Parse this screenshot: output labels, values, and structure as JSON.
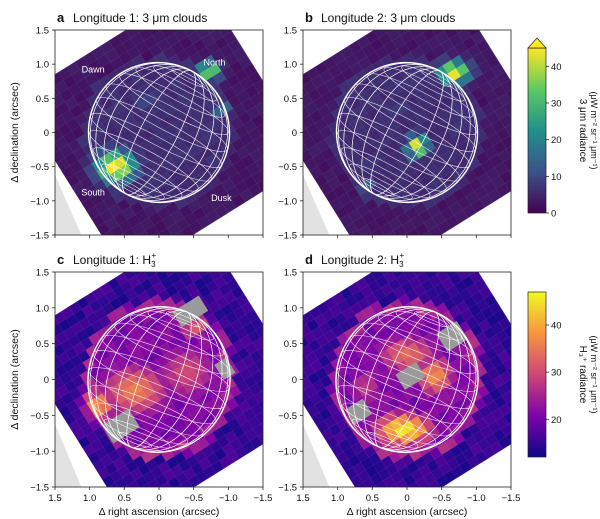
{
  "colors": {
    "bg_clouds": "#3d1454",
    "bg_h3": "#1a0f8c",
    "overlay_grey": "#9a9a9a",
    "obs_grey": "#e2e2e2",
    "viridis": [
      "#440154",
      "#3b528b",
      "#21918c",
      "#5ec962",
      "#fde725"
    ],
    "plasma": [
      "#0d0887",
      "#7e03a8",
      "#cc4778",
      "#f89540",
      "#f0f921"
    ]
  },
  "chart_data": [
    {
      "type": "heatmap",
      "panel": "a",
      "title": "Longitude 1: 3 μm clouds",
      "xlabel": "",
      "ylabel": "Δ declination (arcsec)",
      "xlim": [
        1.5,
        -1.5
      ],
      "ylim": [
        -1.5,
        1.5
      ],
      "xticks": [
        "1.5",
        "1.0",
        "0.5",
        "0",
        "−0.5",
        "−1.0",
        "−1.5"
      ],
      "yticks": [
        "1.5",
        "1.0",
        "0.5",
        "0",
        "−0.5",
        "−1.0",
        "−1.5"
      ],
      "disk_center": [
        0.0,
        0.0
      ],
      "disk_radius": 1.02,
      "annotations": [
        {
          "text": "Dawn",
          "x": 0.95,
          "y": 0.88
        },
        {
          "text": "North",
          "x": -0.8,
          "y": 0.98
        },
        {
          "text": "South",
          "x": 0.95,
          "y": -0.92
        },
        {
          "text": "Dusk",
          "x": -0.9,
          "y": -1.0
        }
      ],
      "features": [
        {
          "x": 0.62,
          "y": -0.5,
          "sx": 0.28,
          "sy": 0.22,
          "value": 48
        },
        {
          "x": -0.72,
          "y": 0.9,
          "sx": 0.16,
          "sy": 0.13,
          "value": 40
        },
        {
          "x": -0.9,
          "y": 0.35,
          "sx": 0.12,
          "sy": 0.12,
          "value": 20
        },
        {
          "x": 0.2,
          "y": 0.45,
          "sx": 0.25,
          "sy": 0.2,
          "value": 10
        },
        {
          "x": -0.3,
          "y": -0.3,
          "sx": 0.3,
          "sy": 0.3,
          "value": 7
        }
      ]
    },
    {
      "type": "heatmap",
      "panel": "b",
      "title": "Longitude 2: 3 μm clouds",
      "xlabel": "",
      "ylabel": "",
      "xlim": [
        1.5,
        -1.5
      ],
      "ylim": [
        -1.5,
        1.5
      ],
      "xticks": [
        "1.5",
        "1.0",
        "0.5",
        "0",
        "−0.5",
        "−1.0",
        "−1.5"
      ],
      "yticks": [
        "1.5",
        "1.0",
        "0.5",
        "0",
        "−0.5",
        "−1.0",
        "−1.5"
      ],
      "disk_center": [
        0.0,
        0.0
      ],
      "disk_radius": 1.02,
      "colorbar": {
        "label": "3 μm radiance",
        "units": "(μW m⁻² sr⁻¹ μm⁻¹)",
        "ticks": [
          "0",
          "10",
          "20",
          "30",
          "40"
        ],
        "range": [
          0,
          45
        ],
        "extend": "max"
      },
      "features": [
        {
          "x": -0.68,
          "y": 0.88,
          "sx": 0.22,
          "sy": 0.16,
          "value": 46
        },
        {
          "x": -0.15,
          "y": -0.2,
          "sx": 0.15,
          "sy": 0.16,
          "value": 45
        },
        {
          "x": 0.58,
          "y": -0.78,
          "sx": 0.14,
          "sy": 0.1,
          "value": 14
        },
        {
          "x": 0.1,
          "y": 0.35,
          "sx": 0.3,
          "sy": 0.22,
          "value": 8
        }
      ]
    },
    {
      "type": "heatmap",
      "panel": "c",
      "title": "Longitude 1: H",
      "title_sub": "3",
      "title_sup": "+",
      "xlabel": "Δ right ascension (arcsec)",
      "ylabel": "Δ declination (arcsec)",
      "xlim": [
        1.5,
        -1.5
      ],
      "ylim": [
        -1.5,
        1.5
      ],
      "xticks": [
        "1.5",
        "1.0",
        "0.5",
        "0",
        "−0.5",
        "−1.0",
        "−1.5"
      ],
      "yticks": [
        "1.5",
        "1.0",
        "0.5",
        "0",
        "−0.5",
        "−1.0",
        "−1.5"
      ],
      "disk_center": [
        0.0,
        0.0
      ],
      "disk_radius": 1.02,
      "features": [
        {
          "x": 0.35,
          "y": -0.15,
          "sx": 0.55,
          "sy": 0.4,
          "value": 36
        },
        {
          "x": -0.4,
          "y": 0.1,
          "sx": 0.5,
          "sy": 0.45,
          "value": 30
        },
        {
          "x": 0.85,
          "y": -0.35,
          "sx": 0.25,
          "sy": 0.25,
          "value": 37
        },
        {
          "x": -0.5,
          "y": 0.72,
          "sx": 0.25,
          "sy": 0.2,
          "value": 32
        }
      ]
    },
    {
      "type": "heatmap",
      "panel": "d",
      "title": "Longitude 2: H",
      "title_sub": "3",
      "title_sup": "+",
      "xlabel": "Δ right ascension (arcsec)",
      "ylabel": "",
      "xlim": [
        1.5,
        -1.5
      ],
      "ylim": [
        -1.5,
        1.5
      ],
      "xticks": [
        "1.5",
        "1.0",
        "0.5",
        "0",
        "−0.5",
        "−1.0",
        "−1.5"
      ],
      "yticks": [
        "1.5",
        "1.0",
        "0.5",
        "0",
        "−0.5",
        "−1.0",
        "−1.5"
      ],
      "disk_center": [
        0.0,
        0.0
      ],
      "disk_radius": 1.02,
      "colorbar": {
        "label": "H₃⁺ radiance",
        "units": "(μW m⁻² sr⁻¹ μm⁻¹)",
        "ticks": [
          "20",
          "30",
          "40"
        ],
        "range": [
          12,
          47
        ],
        "extend": "none"
      },
      "features": [
        {
          "x": 0.05,
          "y": -0.7,
          "sx": 0.45,
          "sy": 0.25,
          "value": 46
        },
        {
          "x": 0.0,
          "y": 0.35,
          "sx": 0.5,
          "sy": 0.3,
          "value": 34
        },
        {
          "x": -0.4,
          "y": 0.05,
          "sx": 0.3,
          "sy": 0.3,
          "value": 38
        },
        {
          "x": 0.6,
          "y": -0.1,
          "sx": 0.3,
          "sy": 0.3,
          "value": 28
        }
      ]
    }
  ]
}
